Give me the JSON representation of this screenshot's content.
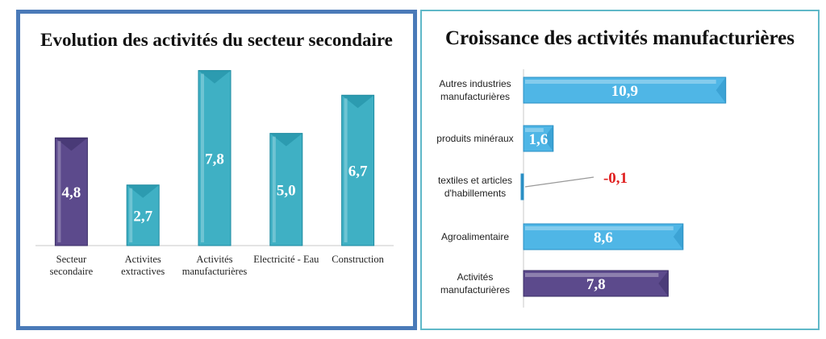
{
  "colors": {
    "teal": "#3fb0c4",
    "teal_dark": "#1e8aa0",
    "purple": "#5c4a8c",
    "purple_dark": "#3a2d66",
    "blue": "#4fb6e6",
    "blue_dark": "#2a8fc4",
    "negative_label": "#e02020"
  },
  "left": {
    "title": "Evolution des activités du secteur secondaire"
  },
  "right": {
    "title": "Croissance des activités manufacturières"
  },
  "chart_data": [
    {
      "type": "bar",
      "orientation": "vertical",
      "title": "Evolution des activités du secteur secondaire",
      "categories": [
        [
          "Secteur",
          "secondaire"
        ],
        [
          "Activites",
          "extractives"
        ],
        [
          "Activités",
          "manufacturières"
        ],
        [
          "Electricité - Eau"
        ],
        [
          "Construction"
        ]
      ],
      "values": [
        4.8,
        2.7,
        7.8,
        5.0,
        6.7
      ],
      "labels": [
        "4,8",
        "2,7",
        "7,8",
        "5,0",
        "6,7"
      ],
      "colors": [
        "purple",
        "teal",
        "teal",
        "teal",
        "teal"
      ],
      "ylim": [
        0,
        8.0
      ],
      "grid": false,
      "legend": "none"
    },
    {
      "type": "bar",
      "orientation": "horizontal",
      "title": "Croissance des activités manufacturières",
      "categories": [
        [
          "Autres industries",
          "manufacturières"
        ],
        [
          "produits minéraux"
        ],
        [
          "textiles et articles",
          "d'habillements"
        ],
        [
          "Agroalimentaire"
        ],
        [
          "Activités",
          "manufacturières"
        ]
      ],
      "values": [
        10.9,
        1.6,
        -0.1,
        8.6,
        7.8
      ],
      "labels": [
        "10,9",
        "1,6",
        "-0,1",
        "8,6",
        "7,8"
      ],
      "colors": [
        "blue",
        "blue",
        "blue",
        "blue",
        "purple"
      ],
      "xlim": [
        -0.2,
        11.5
      ],
      "grid": false,
      "legend": "none"
    }
  ]
}
